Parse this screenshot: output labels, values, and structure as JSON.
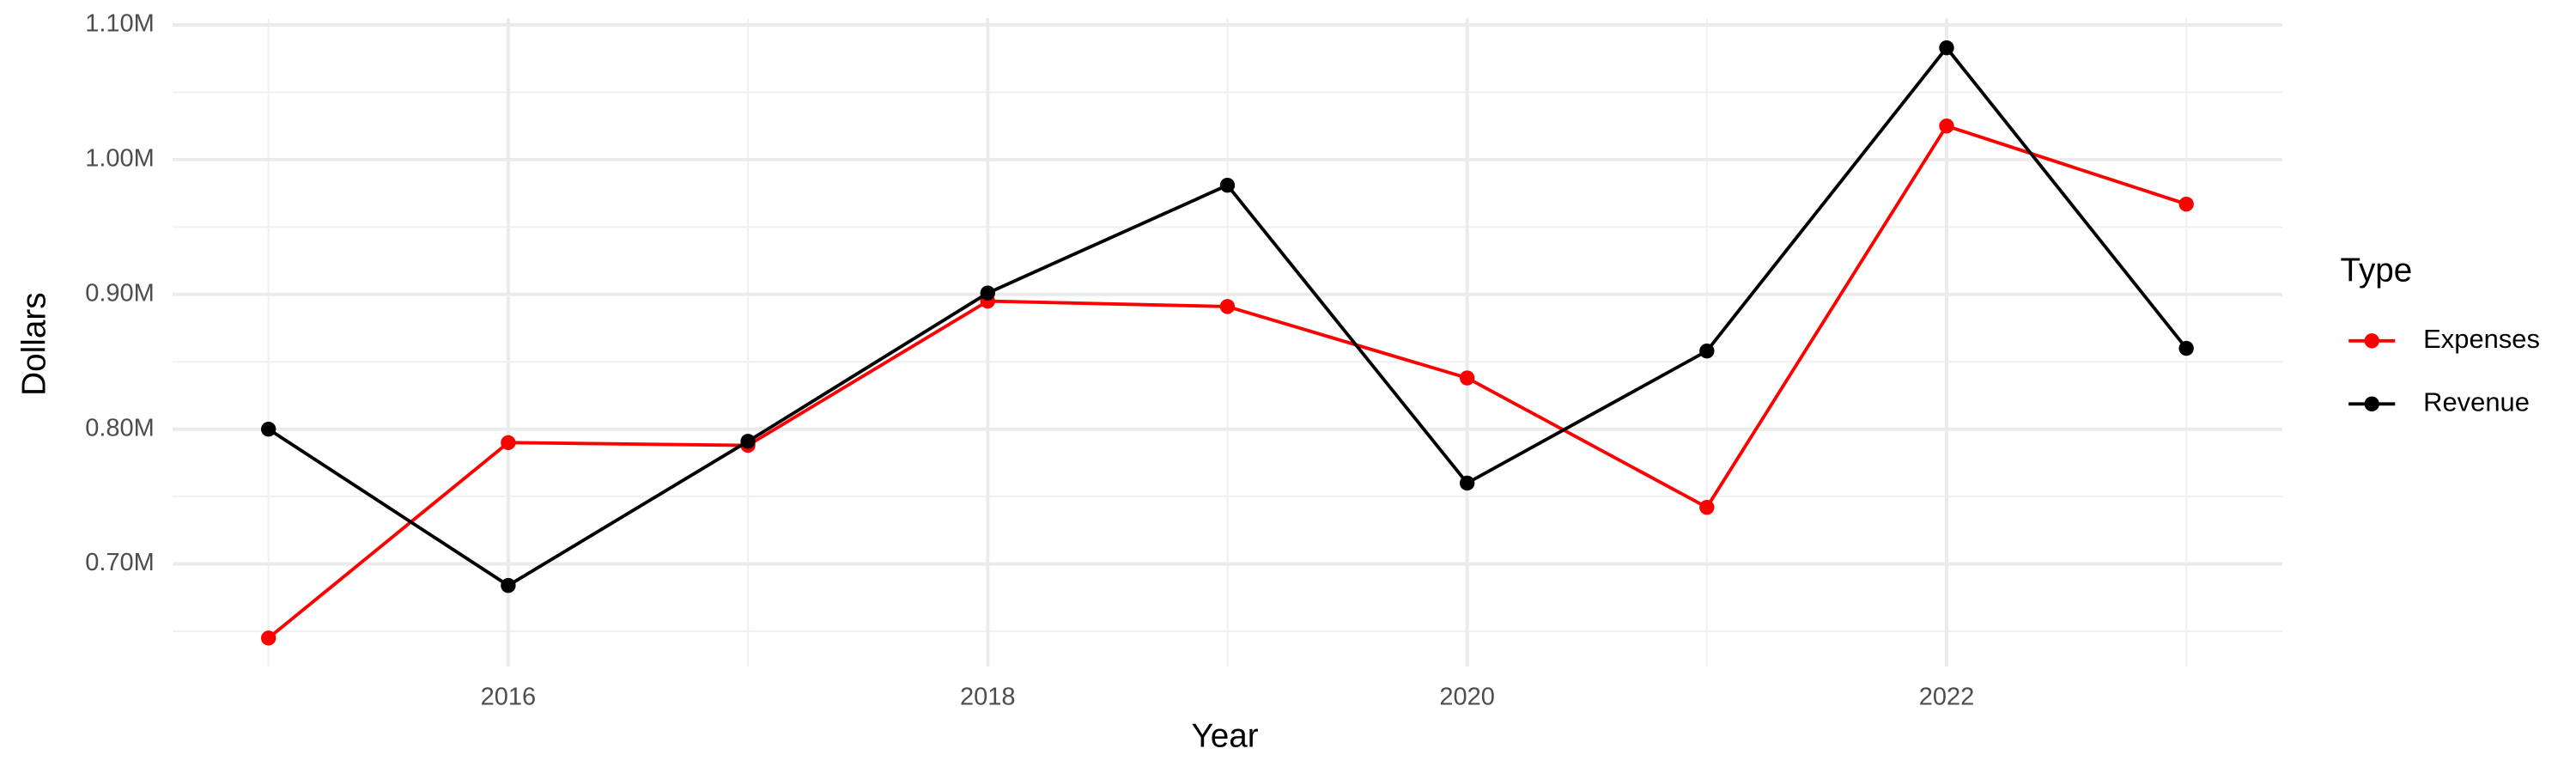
{
  "chart_data": {
    "type": "line",
    "x_label": "Year",
    "y_label": "Dollars",
    "legend_title": "Type",
    "legend_position": "right",
    "x": [
      2015,
      2016,
      2017,
      2018,
      2019,
      2020,
      2021,
      2022,
      2023
    ],
    "series": [
      {
        "name": "Expenses",
        "color": "#ff0000",
        "values": [
          645000,
          790000,
          788000,
          895000,
          891000,
          838000,
          742000,
          1025000,
          967000
        ]
      },
      {
        "name": "Revenue",
        "color": "#000000",
        "values": [
          800000,
          684000,
          791000,
          901000,
          981000,
          760000,
          858000,
          1083000,
          860000
        ]
      }
    ],
    "xlim": [
      2014.6,
      2023.4
    ],
    "xticks": [
      2016,
      2018,
      2020,
      2022
    ],
    "x_minor_ticks": [
      2015,
      2017,
      2019,
      2021,
      2023
    ],
    "ylim": [
      623800,
      1104900
    ],
    "yticks": [
      {
        "value": 700000,
        "label": "0.70M"
      },
      {
        "value": 800000,
        "label": "0.80M"
      },
      {
        "value": 900000,
        "label": "0.90M"
      },
      {
        "value": 1000000,
        "label": "1.00M"
      },
      {
        "value": 1100000,
        "label": "1.10M"
      }
    ],
    "y_minor_ticks": [
      650000,
      750000,
      850000,
      950000,
      1050000
    ],
    "grid": true
  }
}
